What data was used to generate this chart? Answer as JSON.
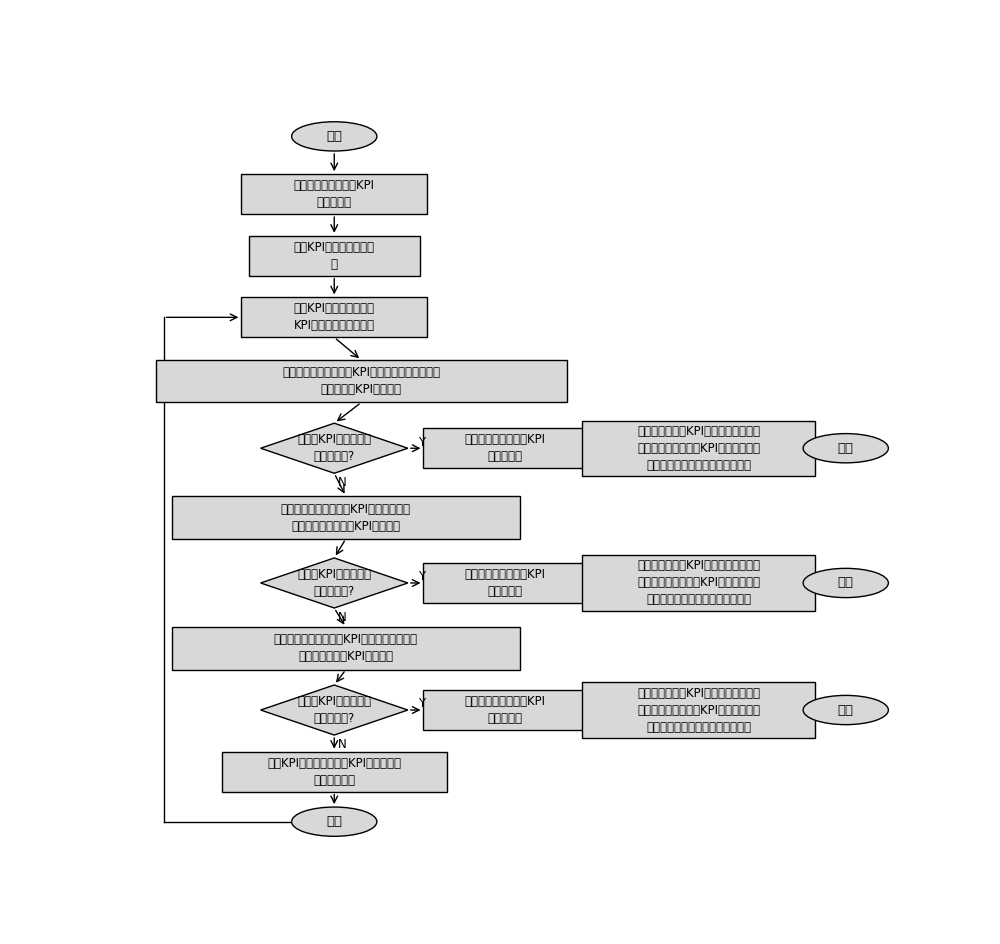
{
  "bg_color": "#ffffff",
  "box_fc": "#d8d8d8",
  "box_ec": "#000000",
  "lw": 1.0,
  "font_size": 8.5,
  "title_font_size": 10,
  "start_text": "开始",
  "end_text": "结束",
  "box1_text": "集团层面计算各电站KPI\n的归一化值",
  "box2_text": "找出KPI归一化值最优电\n站",
  "box3_text": "找出KPI归一化值与最优\nKPI差别超过阈值的电站",
  "box4_text": "计算电站的电网并网层KPI归一化值与最优电站的\n电网变网层KPI归一化值",
  "dia1_text": "并网层KPI归一化值差\n别超过阈值?",
  "box5_text": "分别比较并网层设备KPI\n的归一化值",
  "box5r_text": "找到并网层设备KPI归一化值与最优电\n站并网层相应设备的KPI归一化值差别\n超过阈值的设备，标定为故障设备",
  "box6_text": "计算电站的电网变流层KPI归一化值与最\n优电站的电网变流层KPI归一化值",
  "dia2_text": "变流层KPI归一化值差\n别超过阈值?",
  "box7_text": "分别比较变流层设备KPI\n的归一化值",
  "box7r_text": "找到变流层设备KPI归一化值与最优电\n站变流层相应设备的KPI归一化值差别\n超过阈值的设备，标定为故障设备",
  "box8_text": "计算电站的电网发垫层KPI归一化值与最优电\n站的电网发电层KPI归一化值",
  "dia3_text": "发电层KPI归一化值差\n别超过阈值?",
  "box9_text": "分别比较发电层设备KPI\n的归一化值",
  "box9r_text": "找到发电层设备KPI归一化值与最优电\n站发电层相应设备的KPI归一化值差别\n超过阈值的设备，标定为故障设备",
  "box10_text": "找出KPI归一化值与最优KPI差别超过阈\n值的下一电站",
  "y_label": "Y",
  "n_label": "N"
}
